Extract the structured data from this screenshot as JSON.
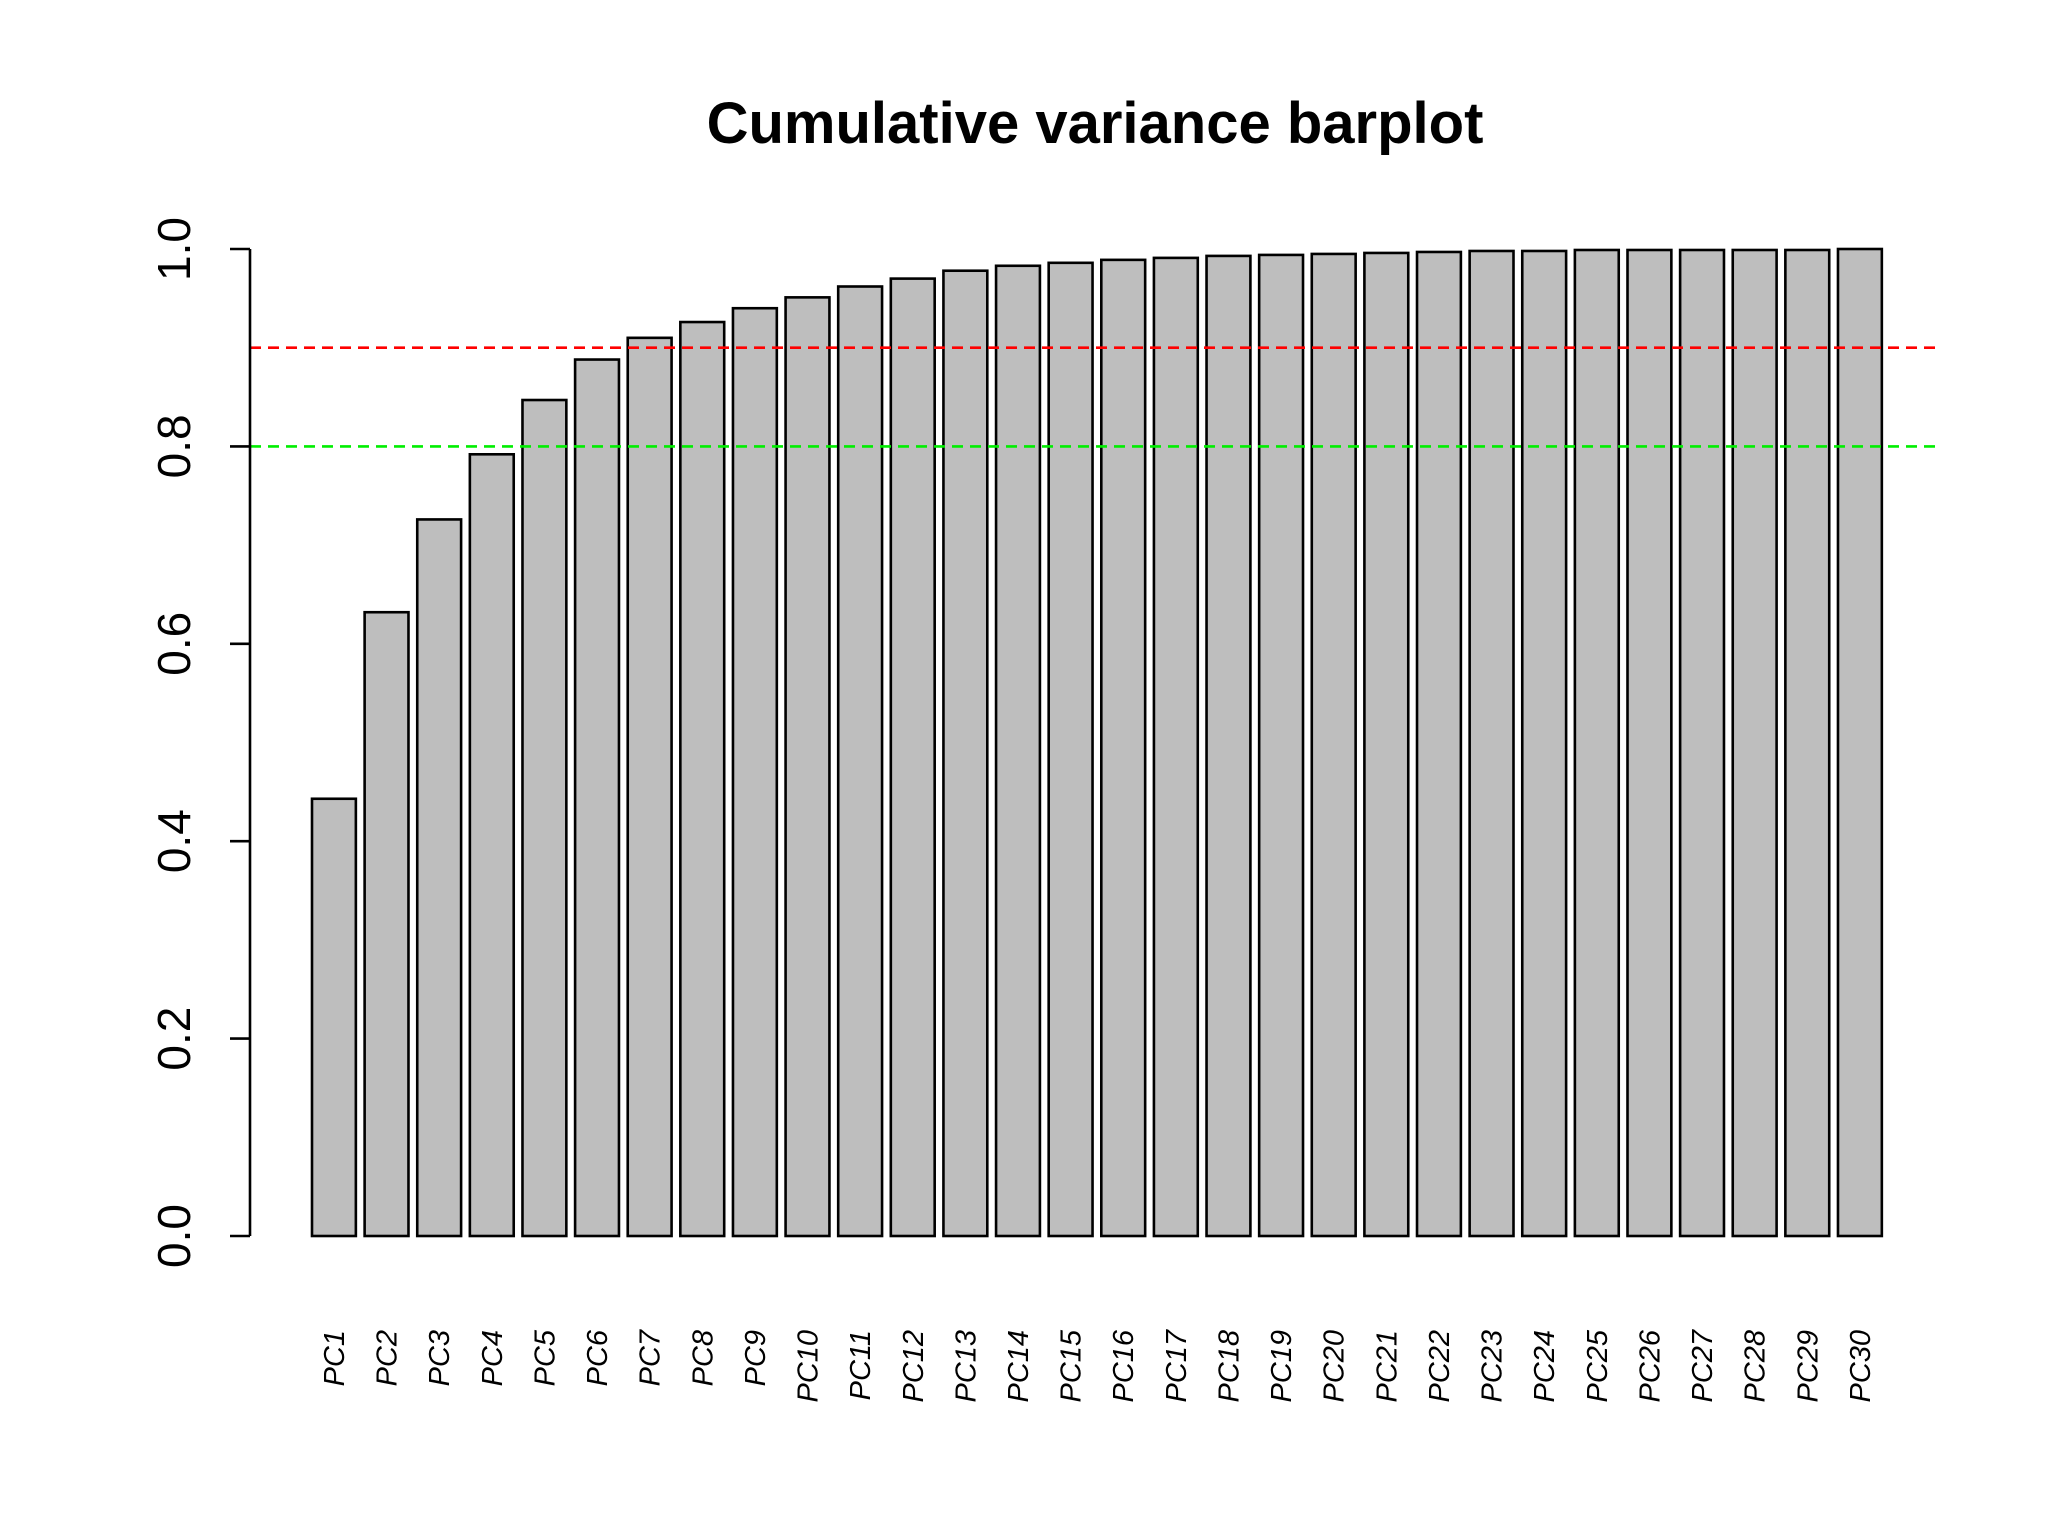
{
  "chart_data": {
    "type": "bar",
    "title": "Cumulative variance barplot",
    "xlabel": "",
    "ylabel": "",
    "ylim": [
      0,
      1
    ],
    "yticks": [
      "0.0",
      "0.2",
      "0.4",
      "0.6",
      "0.8",
      "1.0"
    ],
    "categories": [
      "PC1",
      "PC2",
      "PC3",
      "PC4",
      "PC5",
      "PC6",
      "PC7",
      "PC8",
      "PC9",
      "PC10",
      "PC11",
      "PC12",
      "PC13",
      "PC14",
      "PC15",
      "PC16",
      "PC17",
      "PC18",
      "PC19",
      "PC20",
      "PC21",
      "PC22",
      "PC23",
      "PC24",
      "PC25",
      "PC26",
      "PC27",
      "PC28",
      "PC29",
      "PC30"
    ],
    "values": [
      0.443,
      0.632,
      0.726,
      0.792,
      0.847,
      0.888,
      0.91,
      0.926,
      0.94,
      0.951,
      0.962,
      0.97,
      0.978,
      0.983,
      0.986,
      0.989,
      0.991,
      0.993,
      0.994,
      0.995,
      0.996,
      0.997,
      0.998,
      0.998,
      0.999,
      0.999,
      0.999,
      0.999,
      0.999,
      1.0
    ],
    "bar_color": "#bebebe",
    "reference_lines": [
      {
        "y": 0.9,
        "color": "#ff0000",
        "style": "dashed"
      },
      {
        "y": 0.8,
        "color": "#00ee00",
        "style": "dashed"
      }
    ],
    "grid": false,
    "legend": "none"
  }
}
